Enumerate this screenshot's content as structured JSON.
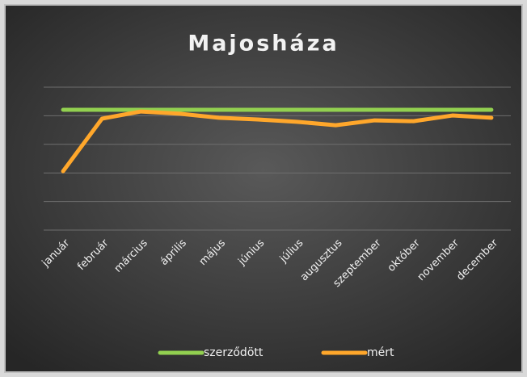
{
  "chart_data": {
    "type": "line",
    "title": "Majosháza",
    "categories": [
      "január",
      "február",
      "március",
      "április",
      "május",
      "június",
      "július",
      "augusztus",
      "szeptember",
      "október",
      "november",
      "december"
    ],
    "series": [
      {
        "name": "szerződött",
        "color": "#92d050",
        "values": [
          4.21,
          4.21,
          4.21,
          4.21,
          4.21,
          4.21,
          4.21,
          4.21,
          4.21,
          4.21,
          4.21,
          4.21
        ]
      },
      {
        "name": "mért",
        "color": "#ffa72b",
        "values": [
          2.06,
          3.9,
          4.15,
          4.07,
          3.93,
          3.87,
          3.79,
          3.67,
          3.84,
          3.81,
          4.01,
          3.93
        ]
      }
    ],
    "ylim": [
      0,
      5
    ],
    "yticks": [
      0,
      1,
      2,
      3,
      4,
      5
    ],
    "grid": true,
    "legend": "bottom"
  }
}
